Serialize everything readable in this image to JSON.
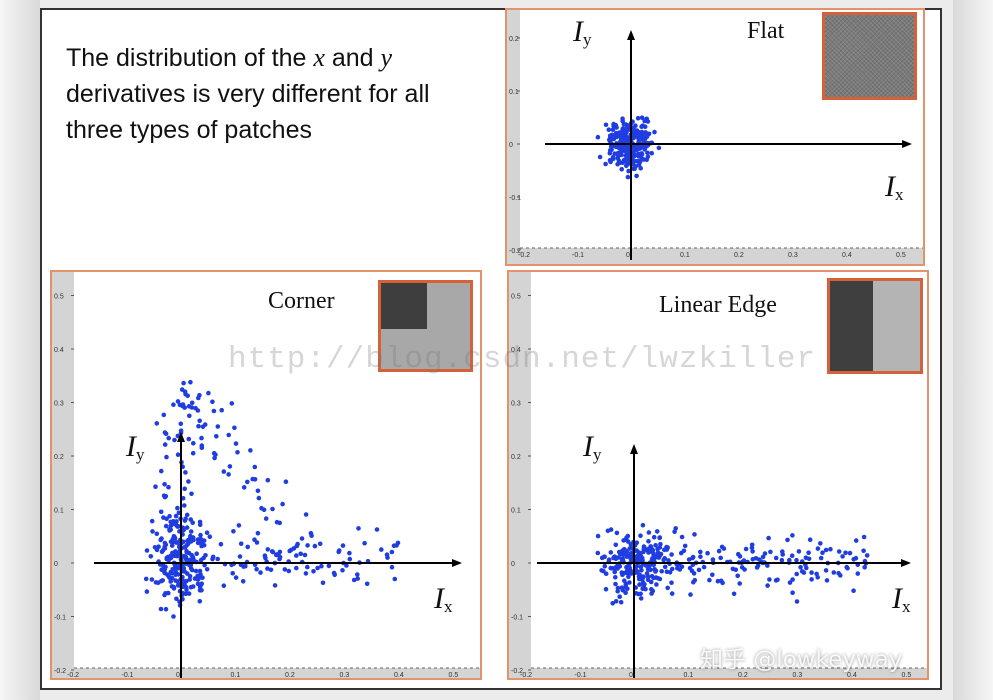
{
  "caption": {
    "p1": "The distribution of the ",
    "x": "x",
    "p2": " and ",
    "y": "y",
    "p3": " derivatives is very different for all three types of patches"
  },
  "panels": {
    "flat": {
      "title": "Flat",
      "ylabel": "I",
      "ysub": "y",
      "xlabel": "I",
      "xsub": "x",
      "yticks": [
        "0.2",
        "0.1",
        "0",
        "-0.1",
        "-0.2"
      ],
      "xticks": [
        "-0.2",
        "-0.1",
        "0",
        "0.1",
        "0.2",
        "0.3",
        "0.4",
        "0.5"
      ]
    },
    "corner": {
      "title": "Corner",
      "ylabel": "I",
      "ysub": "y",
      "xlabel": "I",
      "xsub": "x",
      "yticks": [
        "0.5",
        "0.4",
        "0.3",
        "0.2",
        "0.1",
        "0",
        "-0.1",
        "-0.2"
      ],
      "xticks": [
        "-0.2",
        "-0.1",
        "0",
        "0.1",
        "0.2",
        "0.3",
        "0.4",
        "0.5"
      ]
    },
    "edge": {
      "title": "Linear Edge",
      "ylabel": "I",
      "ysub": "y",
      "xlabel": "I",
      "xsub": "x",
      "yticks": [
        "0.5",
        "0.4",
        "0.3",
        "0.2",
        "0.1",
        "0",
        "-0.1",
        "-0.2"
      ],
      "xticks": [
        "-0.2",
        "-0.1",
        "0",
        "0.1",
        "0.2",
        "0.3",
        "0.4",
        "0.5"
      ]
    }
  },
  "watermark": "http://blog.csdn.net/lwzkiller",
  "source_mark": "知乎 @lowkeyway",
  "colors": {
    "points": "#1f3de0",
    "panel_border": "#e3936b",
    "patch_border": "#d5613a",
    "axis_strip": "#d4d4d4"
  }
}
